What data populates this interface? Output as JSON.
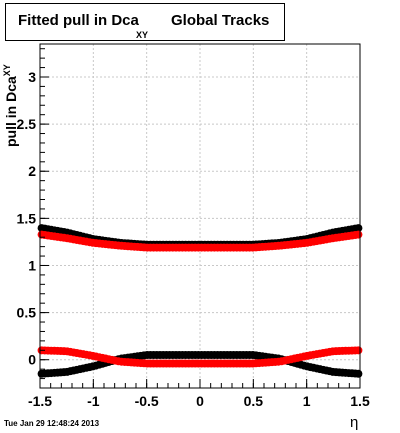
{
  "title": {
    "main": "Fitted pull in Dca",
    "subscript": "XY",
    "tail": "Global Tracks"
  },
  "timestamp": "Tue Jan 29 12:48:24 2013",
  "colors": {
    "black_series": "#000000",
    "red_series": "#ff0000",
    "grid": "#c8c8c8"
  },
  "chart_data": {
    "type": "scatter",
    "title": "Fitted pull in Dca XY Global Tracks",
    "xlabel": "η",
    "ylabel": "pull in Dca XY",
    "xlim": [
      -1.5,
      1.5
    ],
    "ylim": [
      -0.3,
      3.35
    ],
    "grid": true,
    "x_ticks": [
      "-1.5",
      "-1",
      "-0.5",
      "0",
      "0.5",
      "1",
      "1.5"
    ],
    "y_ticks": [
      "0",
      "0.5",
      "1",
      "1.5",
      "2",
      "2.5",
      "3"
    ],
    "x_tick_values": [
      -1.5,
      -1,
      -0.5,
      0,
      0.5,
      1,
      1.5
    ],
    "y_tick_values": [
      0,
      0.5,
      1,
      1.5,
      2,
      2.5,
      3
    ],
    "series": [
      {
        "color": "#000000",
        "kind": "sigma",
        "x": [
          -1.5,
          -1.25,
          -1.0,
          -0.75,
          -0.5,
          -0.25,
          0.0,
          0.25,
          0.5,
          0.75,
          1.0,
          1.25,
          1.5
        ],
        "y": [
          1.4,
          1.35,
          1.28,
          1.24,
          1.22,
          1.22,
          1.22,
          1.22,
          1.22,
          1.24,
          1.28,
          1.35,
          1.4
        ]
      },
      {
        "color": "#ff0000",
        "kind": "sigma",
        "x": [
          -1.5,
          -1.25,
          -1.0,
          -0.75,
          -0.5,
          -0.25,
          0.0,
          0.25,
          0.5,
          0.75,
          1.0,
          1.25,
          1.5
        ],
        "y": [
          1.33,
          1.29,
          1.24,
          1.21,
          1.19,
          1.19,
          1.19,
          1.19,
          1.19,
          1.21,
          1.24,
          1.29,
          1.33
        ]
      },
      {
        "color": "#000000",
        "kind": "mean",
        "x": [
          -1.5,
          -1.25,
          -1.0,
          -0.75,
          -0.5,
          -0.25,
          0.0,
          0.25,
          0.5,
          0.75,
          1.0,
          1.25,
          1.5
        ],
        "y": [
          -0.15,
          -0.13,
          -0.07,
          0.01,
          0.05,
          0.05,
          0.05,
          0.05,
          0.05,
          0.01,
          -0.07,
          -0.13,
          -0.15
        ]
      },
      {
        "color": "#ff0000",
        "kind": "mean",
        "x": [
          -1.5,
          -1.25,
          -1.0,
          -0.75,
          -0.5,
          -0.25,
          0.0,
          0.25,
          0.5,
          0.75,
          1.0,
          1.25,
          1.5
        ],
        "y": [
          0.1,
          0.09,
          0.04,
          -0.02,
          -0.04,
          -0.04,
          -0.04,
          -0.04,
          -0.04,
          -0.02,
          0.04,
          0.09,
          0.1
        ]
      }
    ]
  }
}
